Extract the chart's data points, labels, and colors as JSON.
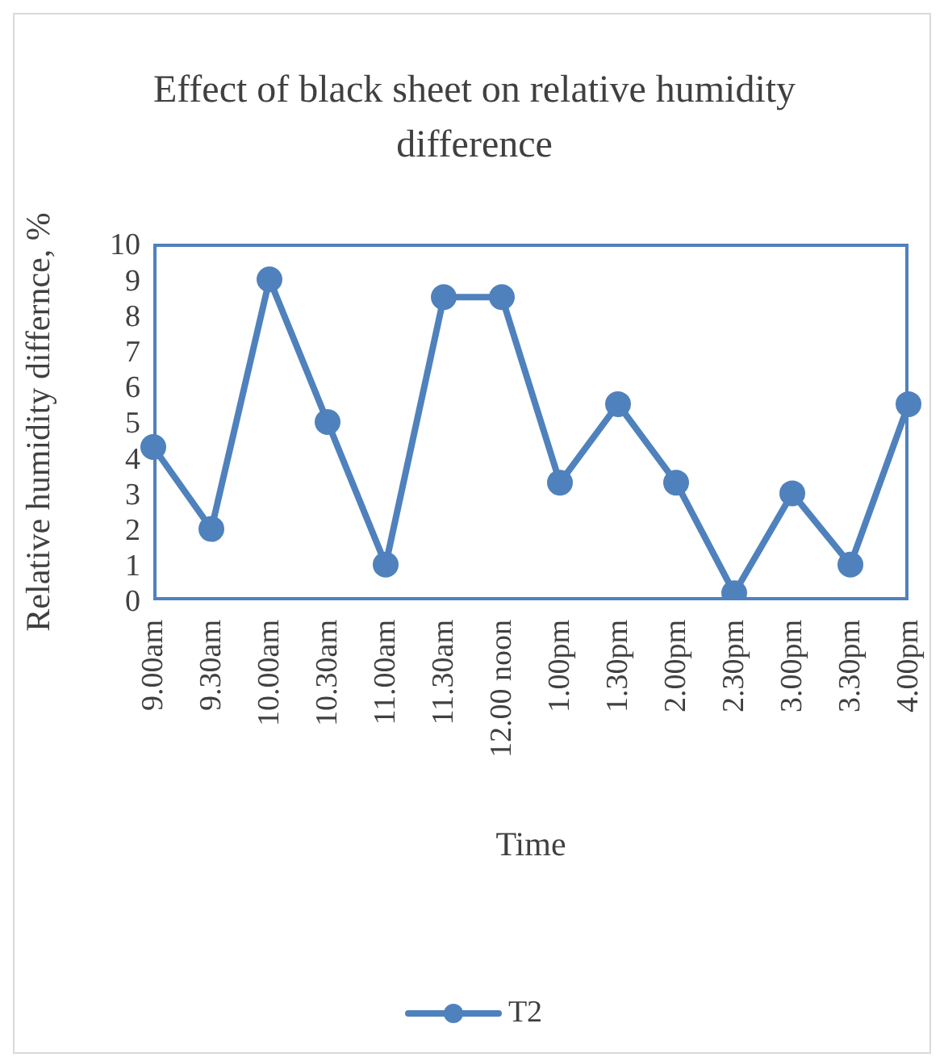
{
  "chart_data": {
    "type": "line",
    "title": "Effect of black sheet on relative humidity difference",
    "xlabel": "Time",
    "ylabel": "Relative humidity differnce, %",
    "categories": [
      "9.00am",
      "9.30am",
      "10.00am",
      "10.30am",
      "11.00am",
      "11.30am",
      "12.00 noon",
      "1.00pm",
      "1.30pm",
      "2.00pm",
      "2.30pm",
      "3.00pm",
      "3.30pm",
      "4.00pm"
    ],
    "series": [
      {
        "name": "T2",
        "color": "#4f81bd",
        "values": [
          4.3,
          2.0,
          9.0,
          5.0,
          1.0,
          8.5,
          8.5,
          3.3,
          5.5,
          3.3,
          0.2,
          3.0,
          1.0,
          5.5
        ]
      }
    ],
    "ylim": [
      0,
      10
    ],
    "yticks": [
      0,
      1,
      2,
      3,
      4,
      5,
      6,
      7,
      8,
      9,
      10
    ],
    "grid": false,
    "legend": "bottom",
    "marker": "circle",
    "line_style": "solid"
  }
}
